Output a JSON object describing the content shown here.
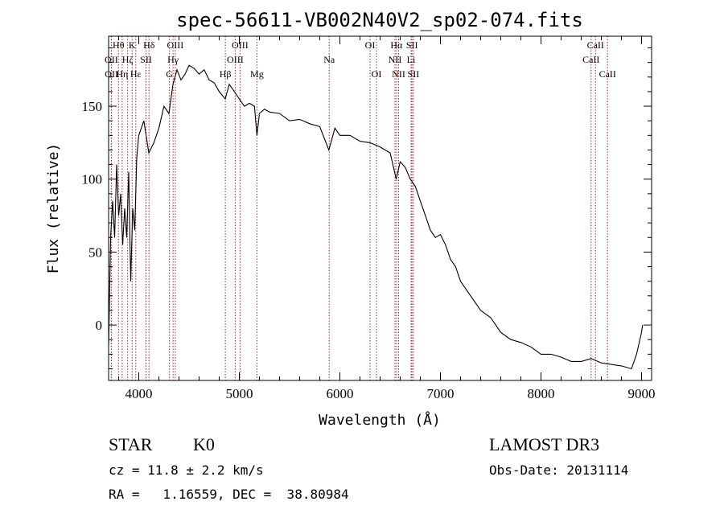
{
  "title": "spec-56611-VB002N40V2_sp02-074.fits",
  "chart_data": {
    "type": "line",
    "xlabel": "Wavelength (Å)",
    "ylabel": "Flux (relative)",
    "xlim": [
      3700,
      9100
    ],
    "ylim": [
      -38,
      198
    ],
    "xticks": [
      4000,
      5000,
      6000,
      7000,
      8000,
      9000
    ],
    "yticks": [
      0,
      50,
      100,
      150
    ],
    "series": [
      {
        "name": "flux",
        "x": [
          3700,
          3720,
          3740,
          3760,
          3780,
          3800,
          3820,
          3840,
          3860,
          3880,
          3900,
          3920,
          3940,
          3960,
          3980,
          4000,
          4050,
          4100,
          4150,
          4200,
          4250,
          4300,
          4340,
          4380,
          4420,
          4460,
          4500,
          4550,
          4600,
          4650,
          4700,
          4750,
          4800,
          4860,
          4900,
          4950,
          5000,
          5050,
          5100,
          5150,
          5175,
          5200,
          5250,
          5300,
          5400,
          5500,
          5600,
          5700,
          5800,
          5890,
          5950,
          6000,
          6100,
          6200,
          6300,
          6400,
          6500,
          6560,
          6600,
          6650,
          6700,
          6750,
          6800,
          6850,
          6900,
          6950,
          7000,
          7050,
          7100,
          7150,
          7200,
          7300,
          7400,
          7500,
          7600,
          7700,
          7800,
          7900,
          8000,
          8100,
          8200,
          8300,
          8400,
          8500,
          8600,
          8700,
          8800,
          8900,
          8950,
          9000,
          9010
        ],
        "values": [
          -15,
          60,
          85,
          60,
          110,
          75,
          90,
          55,
          80,
          60,
          105,
          30,
          80,
          65,
          115,
          130,
          140,
          118,
          125,
          135,
          150,
          145,
          165,
          175,
          168,
          172,
          178,
          176,
          172,
          175,
          168,
          166,
          160,
          155,
          165,
          160,
          155,
          150,
          152,
          150,
          130,
          145,
          148,
          146,
          145,
          140,
          141,
          138,
          136,
          120,
          135,
          130,
          130,
          126,
          125,
          122,
          118,
          100,
          112,
          108,
          100,
          95,
          85,
          75,
          65,
          60,
          62,
          55,
          45,
          40,
          30,
          20,
          10,
          5,
          -5,
          -10,
          -12,
          -15,
          -20,
          -20,
          -22,
          -25,
          -25,
          -23,
          -26,
          -27,
          -28,
          -30,
          -20,
          -5,
          0
        ]
      }
    ],
    "lines": [
      {
        "name": "Hθ",
        "wl": 3798,
        "row": 1
      },
      {
        "name": "OII",
        "wl": 3727,
        "row": 2
      },
      {
        "name": "OII",
        "wl": 3729,
        "row": 3
      },
      {
        "name": "Hη",
        "wl": 3835,
        "row": 3
      },
      {
        "name": "K",
        "wl": 3934,
        "row": 1
      },
      {
        "name": "Hζ",
        "wl": 3889,
        "row": 2
      },
      {
        "name": "Hε",
        "wl": 3970,
        "row": 3
      },
      {
        "name": "Hδ",
        "wl": 4102,
        "row": 1
      },
      {
        "name": "SII",
        "wl": 4072,
        "row": 2
      },
      {
        "name": "OIII",
        "wl": 4363,
        "row": 1
      },
      {
        "name": "Hγ",
        "wl": 4341,
        "row": 2
      },
      {
        "name": "G",
        "wl": 4305,
        "row": 3
      },
      {
        "name": "OIII",
        "wl": 5007,
        "row": 1
      },
      {
        "name": "OIII",
        "wl": 4959,
        "row": 2
      },
      {
        "name": "Hβ",
        "wl": 4861,
        "row": 3
      },
      {
        "name": "Mg",
        "wl": 5175,
        "row": 3
      },
      {
        "name": "Na",
        "wl": 5894,
        "row": 2
      },
      {
        "name": "OI",
        "wl": 6300,
        "row": 1
      },
      {
        "name": "OI",
        "wl": 6364,
        "row": 3
      },
      {
        "name": "Hα",
        "wl": 6563,
        "row": 1
      },
      {
        "name": "NII",
        "wl": 6548,
        "row": 2
      },
      {
        "name": "NII",
        "wl": 6584,
        "row": 3
      },
      {
        "name": "SII",
        "wl": 6717,
        "row": 1
      },
      {
        "name": "Li",
        "wl": 6708,
        "row": 2
      },
      {
        "name": "SII",
        "wl": 6731,
        "row": 3
      },
      {
        "name": "CaII",
        "wl": 8542,
        "row": 1
      },
      {
        "name": "CaII",
        "wl": 8498,
        "row": 2
      },
      {
        "name": "CaII",
        "wl": 8662,
        "row": 3
      }
    ]
  },
  "info": {
    "class": "STAR",
    "subclass": "K0",
    "survey": "LAMOST DR3",
    "cz": "cz = 11.8 ± 2.2 km/s",
    "obs_date": "Obs-Date: 20131114",
    "radec": "RA =   1.16559, DEC =  38.80984"
  }
}
